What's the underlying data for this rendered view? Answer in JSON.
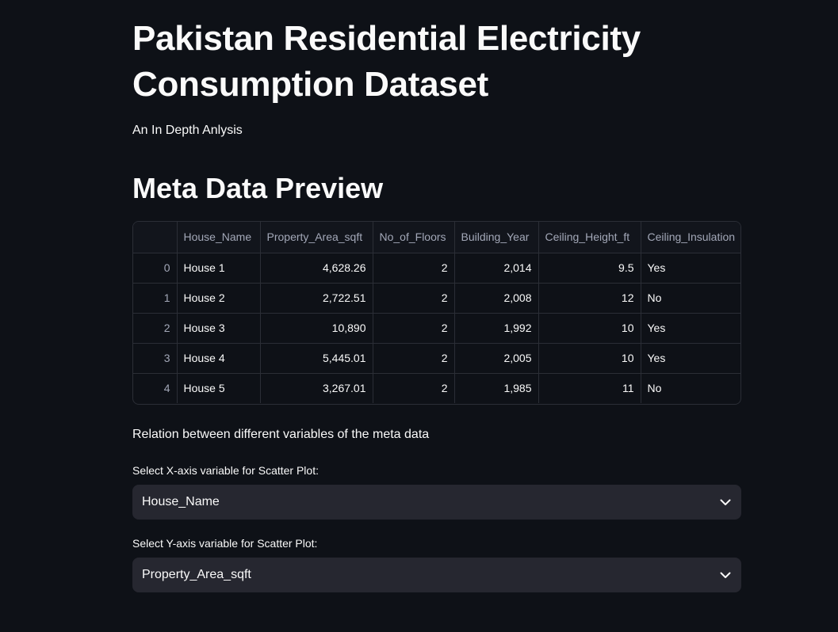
{
  "header": {
    "title": "Pakistan Residential Electricity Consumption Dataset",
    "subtitle": "An In Depth Anlysis"
  },
  "meta_section": {
    "title": "Meta Data Preview",
    "columns": [
      "",
      "House_Name",
      "Property_Area_sqft",
      "No_of_Floors",
      "Building_Year",
      "Ceiling_Height_ft",
      "Ceiling_Insulation"
    ],
    "rows": [
      [
        "0",
        "House 1",
        "4,628.26",
        "2",
        "2,014",
        "9.5",
        "Yes"
      ],
      [
        "1",
        "House 2",
        "2,722.51",
        "2",
        "2,008",
        "12",
        "No"
      ],
      [
        "2",
        "House 3",
        "10,890",
        "2",
        "1,992",
        "10",
        "Yes"
      ],
      [
        "3",
        "House 4",
        "5,445.01",
        "2",
        "2,005",
        "10",
        "Yes"
      ],
      [
        "4",
        "House 5",
        "3,267.01",
        "2",
        "1,985",
        "11",
        "No"
      ]
    ]
  },
  "relation_text": "Relation between different variables of the meta data",
  "x_select": {
    "label": "Select X-axis variable for Scatter Plot:",
    "value": "House_Name"
  },
  "y_select": {
    "label": "Select Y-axis variable for Scatter Plot:",
    "value": "Property_Area_sqft"
  },
  "icons": {
    "dropdown": "chevron-down-icon"
  }
}
